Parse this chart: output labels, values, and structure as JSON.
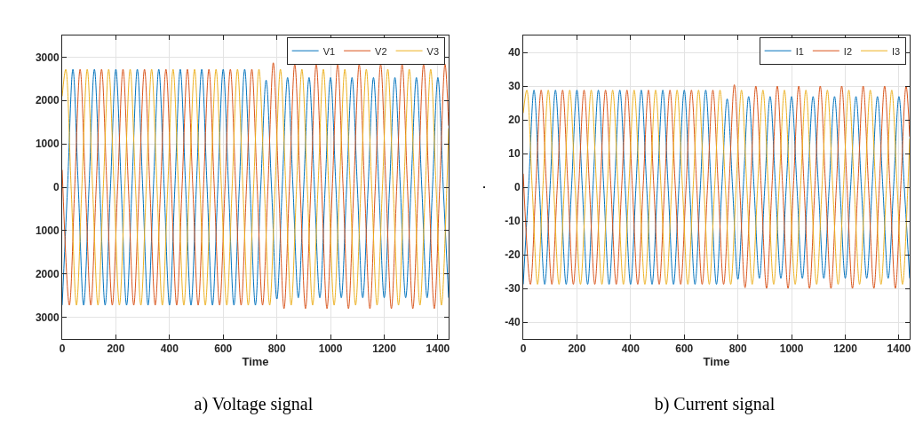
{
  "chart_data": [
    {
      "type": "line",
      "title": "a) Voltage signal",
      "xlabel": "Time",
      "xlim": [
        0,
        1440
      ],
      "xticks": [
        0,
        200,
        400,
        600,
        800,
        1000,
        1200,
        1400
      ],
      "ylim": [
        -3500,
        3500
      ],
      "yticks": [
        {
          "value": -3000,
          "label": "3000"
        },
        {
          "value": -2000,
          "label": "2000"
        },
        {
          "value": -1000,
          "label": "1000"
        },
        0,
        1000,
        2000,
        3000
      ],
      "grid": true,
      "legend": "top right",
      "series": [
        {
          "name": "V1",
          "color": "#0072bd",
          "x": [
            0,
            20,
            40,
            60,
            80,
            100,
            120,
            140,
            160,
            180,
            200,
            220,
            240,
            260,
            280,
            300,
            320,
            340,
            360,
            380,
            400,
            420,
            440,
            460,
            480,
            500,
            520,
            540,
            560,
            580,
            600,
            620,
            640,
            660,
            680,
            700,
            720,
            740,
            760,
            780,
            800,
            820,
            840,
            860,
            880,
            900,
            920,
            940,
            960,
            980,
            1000,
            1020,
            1040,
            1060,
            1080,
            1100,
            1120,
            1140,
            1160,
            1180,
            1200,
            1220,
            1240,
            1260,
            1280,
            1300,
            1320,
            1340,
            1360,
            1380,
            1400,
            1420,
            1440
          ],
          "values": [
            -2720,
            0,
            2720,
            0,
            -2720,
            0,
            2720,
            0,
            -2720,
            0,
            2720,
            0,
            -2720,
            0,
            2720,
            0,
            -2720,
            0,
            2720,
            0,
            -2720,
            0,
            2720,
            0,
            -2720,
            0,
            2720,
            0,
            -2720,
            0,
            2720,
            0,
            -2720,
            0,
            2720,
            0,
            -2720,
            0,
            2470,
            0,
            -2580,
            0,
            2530,
            0,
            -2550,
            0,
            2530,
            0,
            -2550,
            0,
            2530,
            0,
            -2550,
            0,
            2530,
            0,
            -2550,
            0,
            2530,
            0,
            -2550,
            0,
            2530,
            0,
            -2550,
            0,
            2530,
            0,
            -2550,
            0,
            2530,
            0,
            -2550
          ]
        },
        {
          "name": "V2",
          "color": "#d95319",
          "x": [
            0,
            26.7,
            46.7,
            66.7,
            86.7,
            106.7,
            126.7,
            146.7,
            166.7,
            186.7,
            206.7,
            226.7,
            246.7,
            266.7,
            286.7,
            306.7,
            326.7,
            346.7,
            366.7,
            386.7,
            406.7,
            426.7,
            446.7,
            466.7,
            486.7,
            506.7,
            526.7,
            546.7,
            566.7,
            586.7,
            606.7,
            626.7,
            646.7,
            666.7,
            686.7,
            706.7,
            726.7,
            746.7,
            766.7,
            786.7,
            806.7,
            826.7,
            846.7,
            866.7,
            886.7,
            906.7,
            926.7,
            946.7,
            966.7,
            986.7,
            1006.7,
            1026.7,
            1046.7,
            1066.7,
            1086.7,
            1106.7,
            1126.7,
            1146.7,
            1166.7,
            1186.7,
            1206.7,
            1226.7,
            1246.7,
            1266.7,
            1286.7,
            1306.7,
            1326.7,
            1346.7,
            1366.7,
            1386.7,
            1406.7,
            1426.7,
            1440
          ],
          "values": [
            400,
            -2720,
            0,
            2720,
            0,
            -2720,
            0,
            2720,
            0,
            -2720,
            0,
            2720,
            0,
            -2720,
            0,
            2720,
            0,
            -2720,
            0,
            2720,
            0,
            -2720,
            0,
            2720,
            0,
            -2720,
            0,
            2720,
            0,
            -2720,
            0,
            2720,
            0,
            -2720,
            0,
            2720,
            0,
            -2720,
            0,
            2870,
            0,
            -2800,
            0,
            2840,
            0,
            -2800,
            0,
            2840,
            0,
            -2800,
            0,
            2840,
            0,
            -2800,
            0,
            2840,
            0,
            -2800,
            0,
            2840,
            0,
            -2800,
            0,
            2840,
            0,
            -2800,
            0,
            2840,
            0,
            -2800,
            0,
            2840,
            1420
          ]
        },
        {
          "name": "V3",
          "color": "#edb120",
          "x": [
            0,
            13.3,
            33.3,
            53.3,
            73.3,
            93.3,
            113.3,
            133.3,
            153.3,
            173.3,
            193.3,
            213.3,
            233.3,
            253.3,
            273.3,
            293.3,
            313.3,
            333.3,
            353.3,
            373.3,
            393.3,
            413.3,
            433.3,
            453.3,
            473.3,
            493.3,
            513.3,
            533.3,
            553.3,
            573.3,
            593.3,
            613.3,
            633.3,
            653.3,
            673.3,
            693.3,
            713.3,
            733.3,
            753.3,
            773.3,
            793.3,
            813.3,
            833.3,
            853.3,
            873.3,
            893.3,
            913.3,
            933.3,
            953.3,
            973.3,
            993.3,
            1013.3,
            1033.3,
            1053.3,
            1073.3,
            1093.3,
            1113.3,
            1133.3,
            1153.3,
            1173.3,
            1193.3,
            1213.3,
            1233.3,
            1253.3,
            1273.3,
            1293.3,
            1313.3,
            1333.3,
            1353.3,
            1373.3,
            1393.3,
            1413.3,
            1433.3,
            1440
          ],
          "values": [
            2100,
            2720,
            0,
            -2720,
            0,
            2720,
            0,
            -2720,
            0,
            2720,
            0,
            -2720,
            0,
            2720,
            0,
            -2720,
            0,
            2720,
            0,
            -2720,
            0,
            2720,
            0,
            -2720,
            0,
            2720,
            0,
            -2720,
            0,
            2720,
            0,
            -2720,
            0,
            2720,
            0,
            -2720,
            0,
            2720,
            0,
            -2720,
            0,
            2720,
            0,
            -2720,
            0,
            2720,
            0,
            -2720,
            0,
            2720,
            0,
            -2720,
            0,
            2720,
            0,
            -2720,
            0,
            2720,
            0,
            -2720,
            0,
            2720,
            0,
            -2720,
            0,
            2720,
            0,
            -2720,
            0,
            2720,
            0,
            -2720,
            0,
            1360
          ]
        }
      ]
    },
    {
      "type": "line",
      "title": "b) Current signal",
      "xlabel": "Time",
      "ylabel": ".",
      "xlim": [
        0,
        1440
      ],
      "xticks": [
        0,
        200,
        400,
        600,
        800,
        1000,
        1200,
        1400
      ],
      "ylim": [
        -45,
        45
      ],
      "yticks": [
        -40,
        -30,
        -20,
        -10,
        0,
        10,
        20,
        30,
        40
      ],
      "grid": true,
      "legend": "top right",
      "series": [
        {
          "name": "I1",
          "color": "#0072bd",
          "x": [
            0,
            20,
            40,
            60,
            80,
            100,
            120,
            140,
            160,
            180,
            200,
            220,
            240,
            260,
            280,
            300,
            320,
            340,
            360,
            380,
            400,
            420,
            440,
            460,
            480,
            500,
            520,
            540,
            560,
            580,
            600,
            620,
            640,
            660,
            680,
            700,
            720,
            740,
            760,
            780,
            800,
            820,
            840,
            860,
            880,
            900,
            920,
            940,
            960,
            980,
            1000,
            1020,
            1040,
            1060,
            1080,
            1100,
            1120,
            1140,
            1160,
            1180,
            1200,
            1220,
            1240,
            1260,
            1280,
            1300,
            1320,
            1340,
            1360,
            1380,
            1400,
            1420,
            1440
          ],
          "values": [
            -28.8,
            0,
            28.8,
            0,
            -28.8,
            0,
            28.8,
            0,
            -28.8,
            0,
            28.8,
            0,
            -28.8,
            0,
            28.8,
            0,
            -28.8,
            0,
            28.8,
            0,
            -28.8,
            0,
            28.8,
            0,
            -28.8,
            0,
            28.8,
            0,
            -28.8,
            0,
            28.8,
            0,
            -28.8,
            0,
            28.8,
            0,
            -28.8,
            0,
            26.2,
            0,
            -27.3,
            0,
            26.9,
            0,
            -27,
            0,
            26.9,
            0,
            -27,
            0,
            26.9,
            0,
            -27,
            0,
            26.9,
            0,
            -27,
            0,
            26.9,
            0,
            -27,
            0,
            26.9,
            0,
            -27,
            0,
            26.9,
            0,
            -27,
            0,
            26.9,
            0,
            -27
          ]
        },
        {
          "name": "I2",
          "color": "#d95319",
          "x": [
            0,
            26.7,
            46.7,
            66.7,
            86.7,
            106.7,
            126.7,
            146.7,
            166.7,
            186.7,
            206.7,
            226.7,
            246.7,
            266.7,
            286.7,
            306.7,
            326.7,
            346.7,
            366.7,
            386.7,
            406.7,
            426.7,
            446.7,
            466.7,
            486.7,
            506.7,
            526.7,
            546.7,
            566.7,
            586.7,
            606.7,
            626.7,
            646.7,
            666.7,
            686.7,
            706.7,
            726.7,
            746.7,
            766.7,
            786.7,
            806.7,
            826.7,
            846.7,
            866.7,
            886.7,
            906.7,
            926.7,
            946.7,
            966.7,
            986.7,
            1006.7,
            1026.7,
            1046.7,
            1066.7,
            1086.7,
            1106.7,
            1126.7,
            1146.7,
            1166.7,
            1186.7,
            1206.7,
            1226.7,
            1246.7,
            1266.7,
            1286.7,
            1306.7,
            1326.7,
            1346.7,
            1366.7,
            1386.7,
            1406.7,
            1426.7,
            1440
          ],
          "values": [
            4,
            -28.8,
            0,
            28.8,
            0,
            -28.8,
            0,
            28.8,
            0,
            -28.8,
            0,
            28.8,
            0,
            -28.8,
            0,
            28.8,
            0,
            -28.8,
            0,
            28.8,
            0,
            -28.8,
            0,
            28.8,
            0,
            -28.8,
            0,
            28.8,
            0,
            -28.8,
            0,
            28.8,
            0,
            -28.8,
            0,
            28.8,
            0,
            -28.8,
            0,
            30.4,
            0,
            -29.8,
            0,
            30,
            0,
            -30,
            0,
            30,
            0,
            -30,
            0,
            30,
            0,
            -30,
            0,
            30,
            0,
            -30,
            0,
            30,
            0,
            -30,
            0,
            30,
            0,
            -30,
            0,
            30,
            0,
            -30,
            0,
            30,
            15
          ]
        },
        {
          "name": "I3",
          "color": "#edb120",
          "x": [
            0,
            13.3,
            33.3,
            53.3,
            73.3,
            93.3,
            113.3,
            133.3,
            153.3,
            173.3,
            193.3,
            213.3,
            233.3,
            253.3,
            273.3,
            293.3,
            313.3,
            333.3,
            353.3,
            373.3,
            393.3,
            413.3,
            433.3,
            453.3,
            473.3,
            493.3,
            513.3,
            533.3,
            553.3,
            573.3,
            593.3,
            613.3,
            633.3,
            653.3,
            673.3,
            693.3,
            713.3,
            733.3,
            753.3,
            773.3,
            793.3,
            813.3,
            833.3,
            853.3,
            873.3,
            893.3,
            913.3,
            933.3,
            953.3,
            973.3,
            993.3,
            1013.3,
            1033.3,
            1053.3,
            1073.3,
            1093.3,
            1113.3,
            1133.3,
            1153.3,
            1173.3,
            1193.3,
            1213.3,
            1233.3,
            1253.3,
            1273.3,
            1293.3,
            1313.3,
            1333.3,
            1353.3,
            1373.3,
            1393.3,
            1413.3,
            1433.3,
            1440
          ],
          "values": [
            22,
            28.8,
            0,
            -28.8,
            0,
            28.8,
            0,
            -28.8,
            0,
            28.8,
            0,
            -28.8,
            0,
            28.8,
            0,
            -28.8,
            0,
            28.8,
            0,
            -28.8,
            0,
            28.8,
            0,
            -28.8,
            0,
            28.8,
            0,
            -28.8,
            0,
            28.8,
            0,
            -28.8,
            0,
            28.8,
            0,
            -28.8,
            0,
            28.8,
            0,
            -28.8,
            0,
            28.8,
            0,
            -28.8,
            0,
            28.8,
            0,
            -28.8,
            0,
            28.8,
            0,
            -28.8,
            0,
            28.8,
            0,
            -28.8,
            0,
            28.8,
            0,
            -28.8,
            0,
            28.8,
            0,
            -28.8,
            0,
            28.8,
            0,
            -28.8,
            0,
            28.8,
            0,
            -28.8,
            0,
            14.4
          ]
        }
      ]
    }
  ]
}
